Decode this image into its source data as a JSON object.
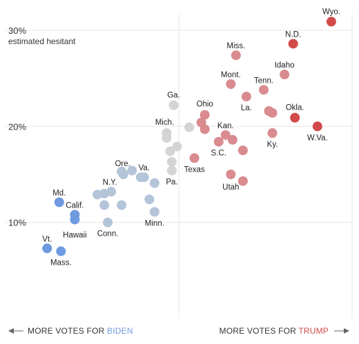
{
  "chart_data": {
    "type": "scatter",
    "title": "",
    "ylabel": "estimated hesitant",
    "y_ticks": [
      "30%",
      "20%",
      "10%"
    ],
    "y_tick_values": [
      30,
      20,
      10
    ],
    "ylim": [
      0,
      31
    ],
    "xlim": [
      -1,
      1
    ],
    "grid": true,
    "left_axis": {
      "prefix": "MORE VOTES FOR ",
      "name": "BIDEN"
    },
    "right_axis": {
      "prefix": "MORE VOTES FOR ",
      "name": "TRUMP"
    },
    "colors": {
      "biden_strong": "#6f9ae0",
      "biden": "#b4c4d9",
      "neutral": "#d4d4d4",
      "trump": "#d98b8f",
      "trump_strong": "#d24a4a"
    },
    "points": [
      {
        "label": "Vt.",
        "x": -0.76,
        "y": 7.3,
        "color": "biden_strong"
      },
      {
        "label": "Mass.",
        "x": -0.68,
        "y": 7.0,
        "color": "biden_strong"
      },
      {
        "label": "Md.",
        "x": -0.69,
        "y": 12.1,
        "color": "biden_strong"
      },
      {
        "label": "Calif.",
        "x": -0.6,
        "y": 10.8,
        "color": "biden_strong"
      },
      {
        "label": "Hawaii",
        "x": -0.6,
        "y": 10.3,
        "color": "biden_strong"
      },
      {
        "label": "",
        "x": -0.47,
        "y": 12.9,
        "color": "biden"
      },
      {
        "label": "",
        "x": -0.43,
        "y": 13.0,
        "color": "biden"
      },
      {
        "label": "N.Y.",
        "x": -0.39,
        "y": 13.2,
        "color": "biden"
      },
      {
        "label": "",
        "x": -0.43,
        "y": 11.8,
        "color": "biden"
      },
      {
        "label": "Conn.",
        "x": -0.41,
        "y": 10.0,
        "color": "biden"
      },
      {
        "label": "",
        "x": -0.33,
        "y": 15.3,
        "color": "biden"
      },
      {
        "label": "Ore.",
        "x": -0.32,
        "y": 15.0,
        "color": "biden"
      },
      {
        "label": "",
        "x": -0.27,
        "y": 15.4,
        "color": "biden"
      },
      {
        "label": "",
        "x": -0.33,
        "y": 11.8,
        "color": "biden"
      },
      {
        "label": "",
        "x": -0.22,
        "y": 14.7,
        "color": "biden"
      },
      {
        "label": "Va.",
        "x": -0.2,
        "y": 14.7,
        "color": "biden"
      },
      {
        "label": "",
        "x": -0.17,
        "y": 12.4,
        "color": "biden"
      },
      {
        "label": "",
        "x": -0.14,
        "y": 14.1,
        "color": "biden"
      },
      {
        "label": "Minn.",
        "x": -0.14,
        "y": 11.1,
        "color": "biden"
      },
      {
        "label": "Ga.",
        "x": -0.03,
        "y": 22.2,
        "color": "neutral"
      },
      {
        "label": "Mich.",
        "x": -0.07,
        "y": 19.3,
        "color": "neutral"
      },
      {
        "label": "",
        "x": -0.07,
        "y": 18.8,
        "color": "neutral"
      },
      {
        "label": "",
        "x": 0.06,
        "y": 19.9,
        "color": "neutral"
      },
      {
        "label": "",
        "x": -0.01,
        "y": 17.9,
        "color": "neutral"
      },
      {
        "label": "",
        "x": -0.05,
        "y": 17.4,
        "color": "neutral"
      },
      {
        "label": "",
        "x": -0.04,
        "y": 16.3,
        "color": "neutral"
      },
      {
        "label": "Pa.",
        "x": -0.04,
        "y": 15.4,
        "color": "neutral"
      },
      {
        "label": "Texas",
        "x": 0.09,
        "y": 16.7,
        "color": "trump"
      },
      {
        "label": "Ohio",
        "x": 0.15,
        "y": 21.2,
        "color": "trump"
      },
      {
        "label": "",
        "x": 0.13,
        "y": 20.4,
        "color": "trump"
      },
      {
        "label": "",
        "x": 0.15,
        "y": 19.7,
        "color": "trump"
      },
      {
        "label": "S.C.",
        "x": 0.23,
        "y": 18.4,
        "color": "trump"
      },
      {
        "label": "Kan.",
        "x": 0.27,
        "y": 19.1,
        "color": "trump"
      },
      {
        "label": "",
        "x": 0.31,
        "y": 18.6,
        "color": "trump"
      },
      {
        "label": "",
        "x": 0.37,
        "y": 17.5,
        "color": "trump"
      },
      {
        "label": "Miss.",
        "x": 0.33,
        "y": 27.4,
        "color": "trump"
      },
      {
        "label": "Mont.",
        "x": 0.3,
        "y": 24.4,
        "color": "trump"
      },
      {
        "label": "La.",
        "x": 0.39,
        "y": 23.1,
        "color": "trump"
      },
      {
        "label": "Tenn.",
        "x": 0.49,
        "y": 23.8,
        "color": "trump"
      },
      {
        "label": "Idaho",
        "x": 0.61,
        "y": 25.4,
        "color": "trump"
      },
      {
        "label": "",
        "x": 0.52,
        "y": 21.6,
        "color": "trump"
      },
      {
        "label": "",
        "x": 0.54,
        "y": 21.4,
        "color": "trump"
      },
      {
        "label": "Ky.",
        "x": 0.54,
        "y": 19.3,
        "color": "trump"
      },
      {
        "label": "Utah",
        "x": 0.3,
        "y": 15.0,
        "color": "trump"
      },
      {
        "label": "",
        "x": 0.37,
        "y": 14.3,
        "color": "trump"
      },
      {
        "label": "N.D.",
        "x": 0.66,
        "y": 28.6,
        "color": "trump_strong"
      },
      {
        "label": "Wyo.",
        "x": 0.88,
        "y": 30.9,
        "color": "trump_strong"
      },
      {
        "label": "Okla.",
        "x": 0.67,
        "y": 20.9,
        "color": "trump_strong"
      },
      {
        "label": "W.Va.",
        "x": 0.8,
        "y": 20.0,
        "color": "trump_strong"
      }
    ]
  }
}
